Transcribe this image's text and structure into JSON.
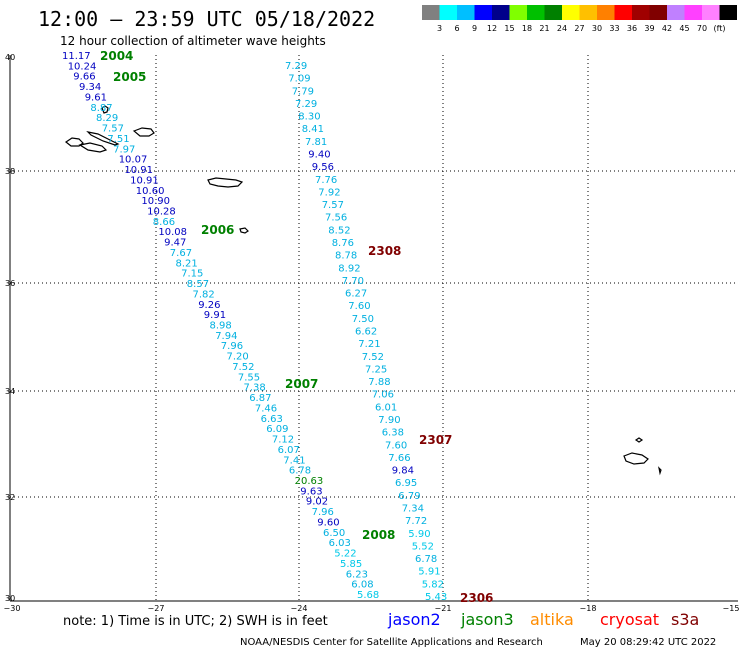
{
  "header": {
    "title": "12:00 – 23:59 UTC 05/18/2022",
    "subtitle": "12 hour collection of altimeter wave heights"
  },
  "legend": {
    "colors": [
      "#808080",
      "#00ffff",
      "#00bfff",
      "#0000ff",
      "#00008b",
      "#80ff00",
      "#00c000",
      "#008000",
      "#ffff00",
      "#ffc000",
      "#ff8000",
      "#ff0000",
      "#a00000",
      "#800000",
      "#c080ff",
      "#ff40ff",
      "#ff80ff",
      "#000000"
    ],
    "labels": [
      "3",
      "6",
      "9",
      "12",
      "15",
      "18",
      "21",
      "24",
      "27",
      "30",
      "33",
      "36",
      "39",
      "42",
      "45",
      "70",
      "(ft)"
    ]
  },
  "axes": {
    "lat_labels": [
      "40",
      "38",
      "36",
      "34",
      "32",
      "30"
    ],
    "lon_labels": [
      "−30",
      "−27",
      "−24",
      "−21",
      "−18",
      "−15"
    ]
  },
  "footer": {
    "note": "note:  1) Time is in UTC; 2) SWH is in feet",
    "satellites": [
      {
        "name": "jason2",
        "color": "#0000ff"
      },
      {
        "name": "jason3",
        "color": "#008000"
      },
      {
        "name": "altika",
        "color": "#ff8c00"
      },
      {
        "name": "cryosat",
        "color": "#ff0000"
      },
      {
        "name": "s3a",
        "color": "#800000"
      }
    ],
    "credit": "NOAA/NESDIS Center for Satellite Applications and Research",
    "timestamp": "May 20 08:29:42 UTC 2022"
  },
  "track_labels": [
    "2004",
    "2005",
    "2006",
    "2007",
    "2008",
    "2308",
    "2307",
    "2306"
  ],
  "track_labels_colors": [
    "#008000",
    "#008000",
    "#008000",
    "#008000",
    "#008000",
    "#800000",
    "#800000",
    "#800000"
  ],
  "track_a_values": [
    "11.17",
    "10.24",
    "9.66",
    "9.34",
    "9.61",
    "8.87",
    "8.29",
    "7.57",
    "7.51",
    "7.97",
    "10.07",
    "10.91",
    "10.91",
    "10.60",
    "10.90",
    "10.28",
    "8.66",
    "10.08",
    "9.47",
    "7.67",
    "8.21",
    "7.15",
    "8.57",
    "7.82",
    "9.26",
    "9.91",
    "8.98",
    "7.94",
    "7.96",
    "7.20",
    "7.52",
    "7.55",
    "7.38",
    "6.87",
    "7.46",
    "6.63",
    "6.09",
    "7.12",
    "6.07",
    "7.41",
    "6.78",
    "20.63",
    "9.63",
    "9.02",
    "7.96",
    "9.60",
    "6.50",
    "6.03",
    "5.22",
    "5.85",
    "6.23",
    "6.08",
    "5.68"
  ],
  "track_b_values": [
    "7.29",
    "7.09",
    "7.79",
    "7.29",
    "8.30",
    "8.41",
    "7.81",
    "9.40",
    "9.56",
    "7.76",
    "7.92",
    "7.57",
    "7.56",
    "8.52",
    "8.76",
    "8.78",
    "8.92",
    "7.70",
    "6.27",
    "7.60",
    "7.50",
    "6.62",
    "7.21",
    "7.52",
    "7.25",
    "7.88",
    "7.06",
    "6.01",
    "7.90",
    "6.38",
    "7.60",
    "7.66",
    "9.84",
    "6.95",
    "6.79",
    "7.34",
    "7.72",
    "5.90",
    "5.52",
    "6.78",
    "5.91",
    "5.82",
    "5.43"
  ]
}
